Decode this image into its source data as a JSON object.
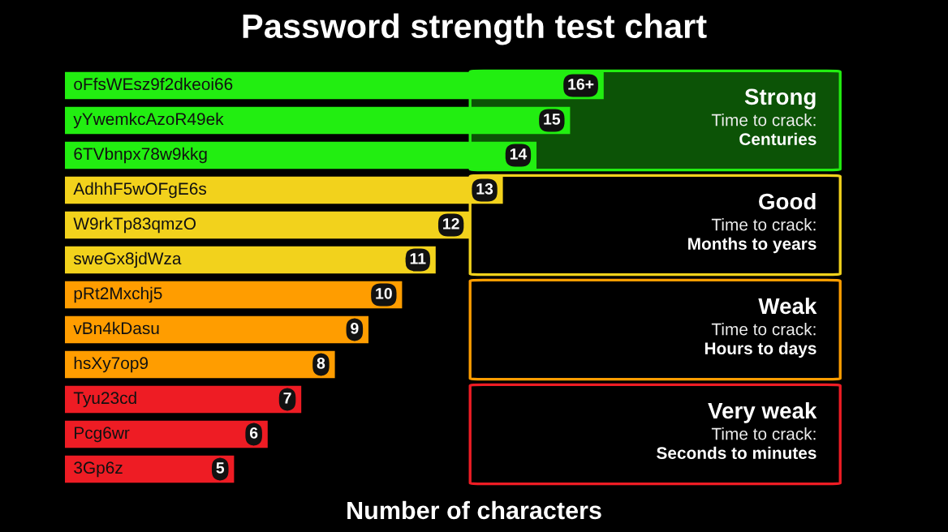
{
  "chart_data": {
    "type": "bar",
    "orientation": "horizontal",
    "title": "Password strength test chart",
    "xlabel": "Number of characters",
    "categories": [
      "oFfsWEsz9f2dkeoi66",
      "yYwemkcAzoR49ek",
      "6TVbnpx78w9kkg",
      "AdhhF5wOFgE6s",
      "W9rkTp83qmzO",
      "sweGx8jdWza",
      "pRt2Mxchj5",
      "vBn4kDasu",
      "hsXy7op9",
      "Tyu23cd",
      "Pcg6wr",
      "3Gp6z"
    ],
    "values": [
      16,
      15,
      14,
      13,
      12,
      11,
      10,
      9,
      8,
      7,
      6,
      5
    ],
    "value_labels": [
      "16+",
      "15",
      "14",
      "13",
      "12",
      "11",
      "10",
      "9",
      "8",
      "7",
      "6",
      "5"
    ],
    "colors": [
      "#22ee11",
      "#22ee11",
      "#22ee11",
      "#f2d21c",
      "#f2d21c",
      "#f2d21c",
      "#ff9d00",
      "#ff9d00",
      "#ff9d00",
      "#ee1c24",
      "#ee1c24",
      "#ee1c24"
    ],
    "annotations": [
      "Strong\nTime to crack:\nCenturies",
      "Good\nTime to crack:\nMonths to years",
      "Weak\nTime to crack:\nHours to days",
      "Very weak\nTime to crack:\nSeconds to minutes"
    ]
  }
}
